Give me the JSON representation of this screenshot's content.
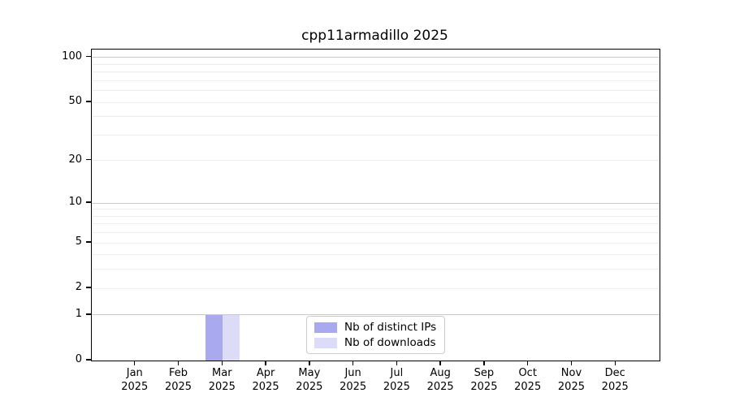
{
  "figure": {
    "title": "cpp11armadillo 2025"
  },
  "chart_data": {
    "type": "bar",
    "title": "cpp11armadillo 2025",
    "categories": [
      "Jan",
      "Feb",
      "Mar",
      "Apr",
      "May",
      "Jun",
      "Jul",
      "Aug",
      "Sep",
      "Oct",
      "Nov",
      "Dec"
    ],
    "category_year": "2025",
    "series": [
      {
        "name": "Nb of distinct IPs",
        "color": "#a9a9f0",
        "values": [
          0,
          0,
          1,
          0,
          0,
          0,
          0,
          0,
          0,
          0,
          0,
          0
        ]
      },
      {
        "name": "Nb of downloads",
        "color": "#dcdcf8",
        "values": [
          0,
          0,
          1,
          0,
          0,
          0,
          0,
          0,
          0,
          0,
          0,
          0
        ]
      }
    ],
    "xlabel": "",
    "ylabel": "",
    "yscale": "log1p",
    "ylim": [
      0,
      113
    ],
    "yticks": [
      0,
      1,
      2,
      5,
      10,
      20,
      50,
      100
    ],
    "major_gridline_values": [
      1,
      10,
      100
    ],
    "minor_gridline_values": [
      2,
      3,
      4,
      5,
      6,
      7,
      8,
      9,
      20,
      30,
      40,
      50,
      60,
      70,
      80,
      90
    ],
    "grid": true,
    "legend_position": "lower-center-inside",
    "colors": {
      "major_grid": "#c9c9c9",
      "minor_grid": "#ededed",
      "axis": "#000000",
      "text": "#000000",
      "background": "#ffffff"
    }
  }
}
